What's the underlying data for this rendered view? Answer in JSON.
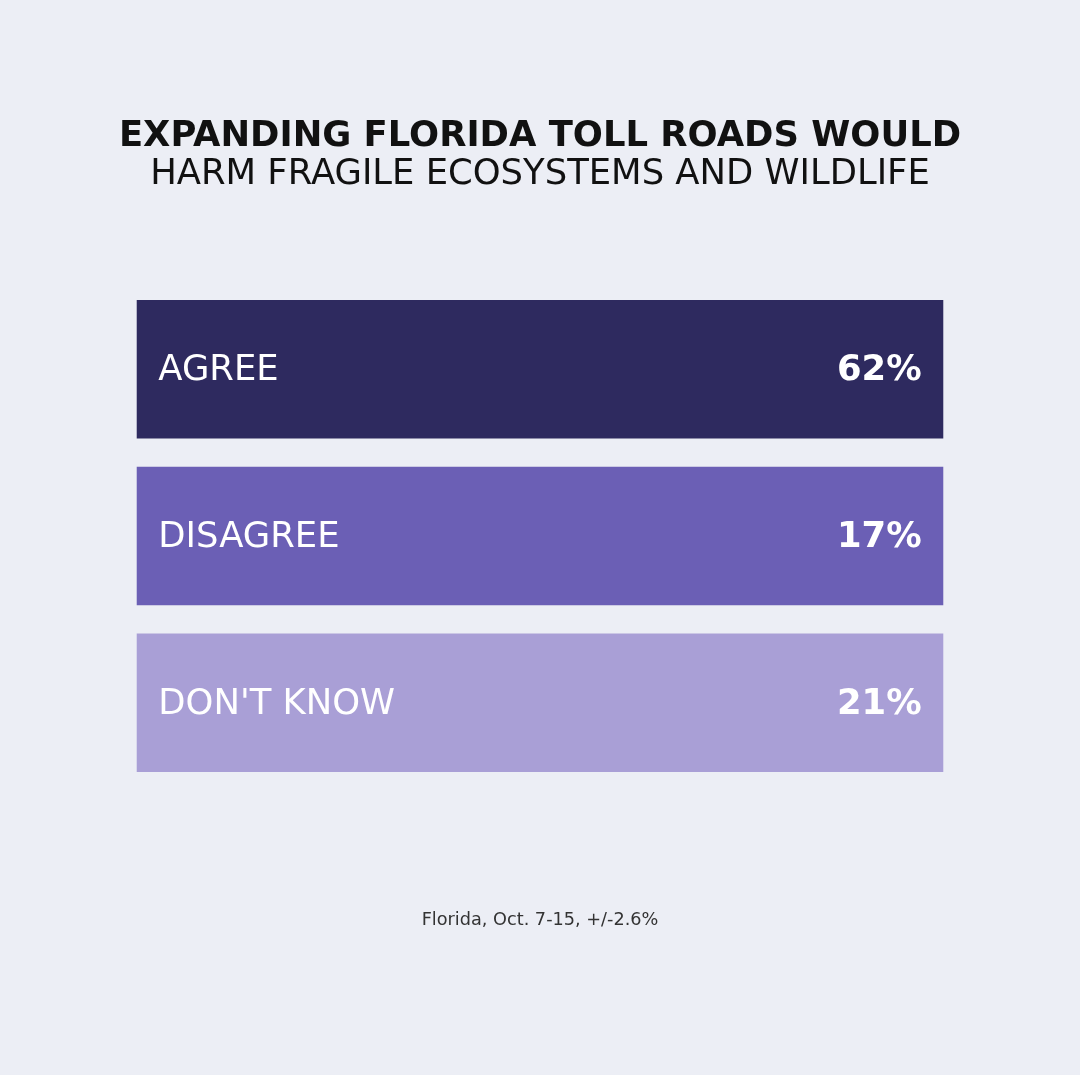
{
  "chart_data": {
    "type": "other",
    "title": "EXPANDING FLORIDA TOLL ROADS WOULD",
    "subtitle": "HARM FRAGILE ECOSYSTEMS AND WILDLIFE",
    "categories": [
      "AGREE",
      "DISAGREE",
      "DON'T KNOW"
    ],
    "values": [
      62,
      17,
      21
    ],
    "value_labels": [
      "62%",
      "17%",
      "21%"
    ],
    "colors": [
      "#2e2a5f",
      "#6b5fb5",
      "#a99fd6"
    ],
    "annotations": [
      "Florida, Oct. 7-15, +/-2.6%"
    ]
  }
}
